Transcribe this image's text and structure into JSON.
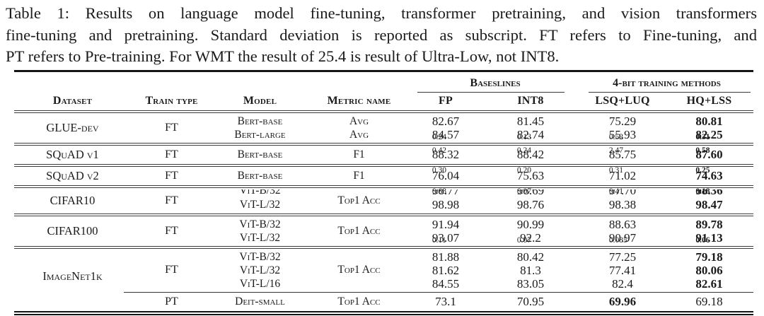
{
  "caption": {
    "lines": [
      "Table 1: Results on language model fine-tuning, transformer pretraining, and vision transformers",
      "fine-tuning and pretraining. Standard deviation is reported as subscript. FT refers to Fine-tuning, and",
      "PT refers to Pre-training. For WMT the result of 25.4 is result of Ultra-Low, not INT8."
    ]
  },
  "table": {
    "col_headers": [
      "Dataset",
      "Train type",
      "Model",
      "Metric name"
    ],
    "groups": [
      {
        "label": "Baseslines",
        "cols": [
          "FP",
          "INT8"
        ]
      },
      {
        "label": "4-bit training methods",
        "cols": [
          "LSQ+LUQ",
          "HQ+LSS"
        ]
      }
    ],
    "sections": [
      {
        "dataset": "GLUE-dev",
        "train": "FT",
        "rows": [
          {
            "model": "Bert-base",
            "metric": "Avg",
            "vals": [
              {
                "v": "82.67",
                "s": "0.24"
              },
              {
                "v": "81.45",
                "s": "0.13"
              },
              {
                "v": "75.29",
                "s": "0.52"
              },
              {
                "v": "80.81",
                "s": "0.31",
                "b": true
              }
            ]
          },
          {
            "model": "Bert-large",
            "metric": "Avg",
            "vals": [
              {
                "v": "84.57",
                "s": "0.42"
              },
              {
                "v": "82.74",
                "s": "0.24"
              },
              {
                "v": "55.93",
                "s": "2.47"
              },
              {
                "v": "82.25",
                "s": "0.58",
                "b": true
              }
            ]
          }
        ]
      },
      {
        "dataset": "SQuAD v1",
        "train": "FT",
        "single": true,
        "rows": [
          {
            "model": "Bert-base",
            "metric": "F1",
            "vals": [
              {
                "v": "88.32",
                "s": "0.30"
              },
              {
                "v": "88.42",
                "s": "0.20"
              },
              {
                "v": "85.75",
                "s": "0.31"
              },
              {
                "v": "87.60",
                "s": "0.25",
                "b": true
              }
            ]
          }
        ]
      },
      {
        "dataset": "SQuAD v2",
        "train": "FT",
        "single": true,
        "rows": [
          {
            "model": "Bert-base",
            "metric": "F1",
            "vals": [
              {
                "v": "76.04",
                "s": "0.68"
              },
              {
                "v": "75.63",
                "s": "0.07"
              },
              {
                "v": "71.02",
                "s": "0.41"
              },
              {
                "v": "74.63",
                "s": "0.18",
                "b": true
              }
            ]
          }
        ]
      },
      {
        "dataset": "CIFAR10",
        "train": "FT",
        "metric": "Top1 Acc",
        "rows": [
          {
            "model": "ViT-B/32",
            "clipped": true,
            "vals": [
              {
                "v": "98.77",
                "s": "0.03"
              },
              {
                "v": "98.69",
                "s": "0.02"
              },
              {
                "v": "97.70",
                "s": "0.10"
              },
              {
                "v": "98.36",
                "s": "0.05",
                "b": true
              }
            ]
          },
          {
            "model": "ViT-L/32",
            "vals": [
              {
                "v": "98.98"
              },
              {
                "v": "98.76"
              },
              {
                "v": "98.38"
              },
              {
                "v": "98.47",
                "b": true
              }
            ]
          }
        ]
      },
      {
        "dataset": "CIFAR100",
        "train": "FT",
        "metric": "Top1 Acc",
        "rows": [
          {
            "model": "ViT-B/32",
            "vals": [
              {
                "v": "91.94",
                "s": "0.11"
              },
              {
                "v": "90.99",
                "s": "0.07"
              },
              {
                "v": "88.63",
                "s": "0.085"
              },
              {
                "v": "89.78",
                "s": "0.06",
                "b": true
              }
            ]
          },
          {
            "model": "ViT-L/32",
            "vals": [
              {
                "v": "93.07"
              },
              {
                "v": "92.2"
              },
              {
                "v": "90.97"
              },
              {
                "v": "91.13",
                "b": true
              }
            ]
          }
        ]
      },
      {
        "dataset": "ImageNet1k",
        "train": "FT",
        "metric": "Top1 Acc",
        "multi": true,
        "rows": [
          {
            "model": "ViT-B/32",
            "vals": [
              {
                "v": "81.88"
              },
              {
                "v": "80.42"
              },
              {
                "v": "77.25"
              },
              {
                "v": "79.18",
                "b": true
              }
            ]
          },
          {
            "model": "ViT-L/32",
            "vals": [
              {
                "v": "81.62"
              },
              {
                "v": "81.3"
              },
              {
                "v": "77.41"
              },
              {
                "v": "80.06",
                "b": true
              }
            ]
          },
          {
            "model": "ViT-L/16",
            "vals": [
              {
                "v": "84.55"
              },
              {
                "v": "83.05"
              },
              {
                "v": "82.4"
              },
              {
                "v": "82.61",
                "b": true
              }
            ]
          }
        ],
        "pt_row": {
          "train": "PT",
          "model": "Deit-small",
          "metric": "Top1 Acc",
          "vals": [
            {
              "v": "73.1"
            },
            {
              "v": "70.95"
            },
            {
              "v": "69.96",
              "b": true
            },
            {
              "v": "69.18"
            }
          ]
        }
      }
    ]
  }
}
